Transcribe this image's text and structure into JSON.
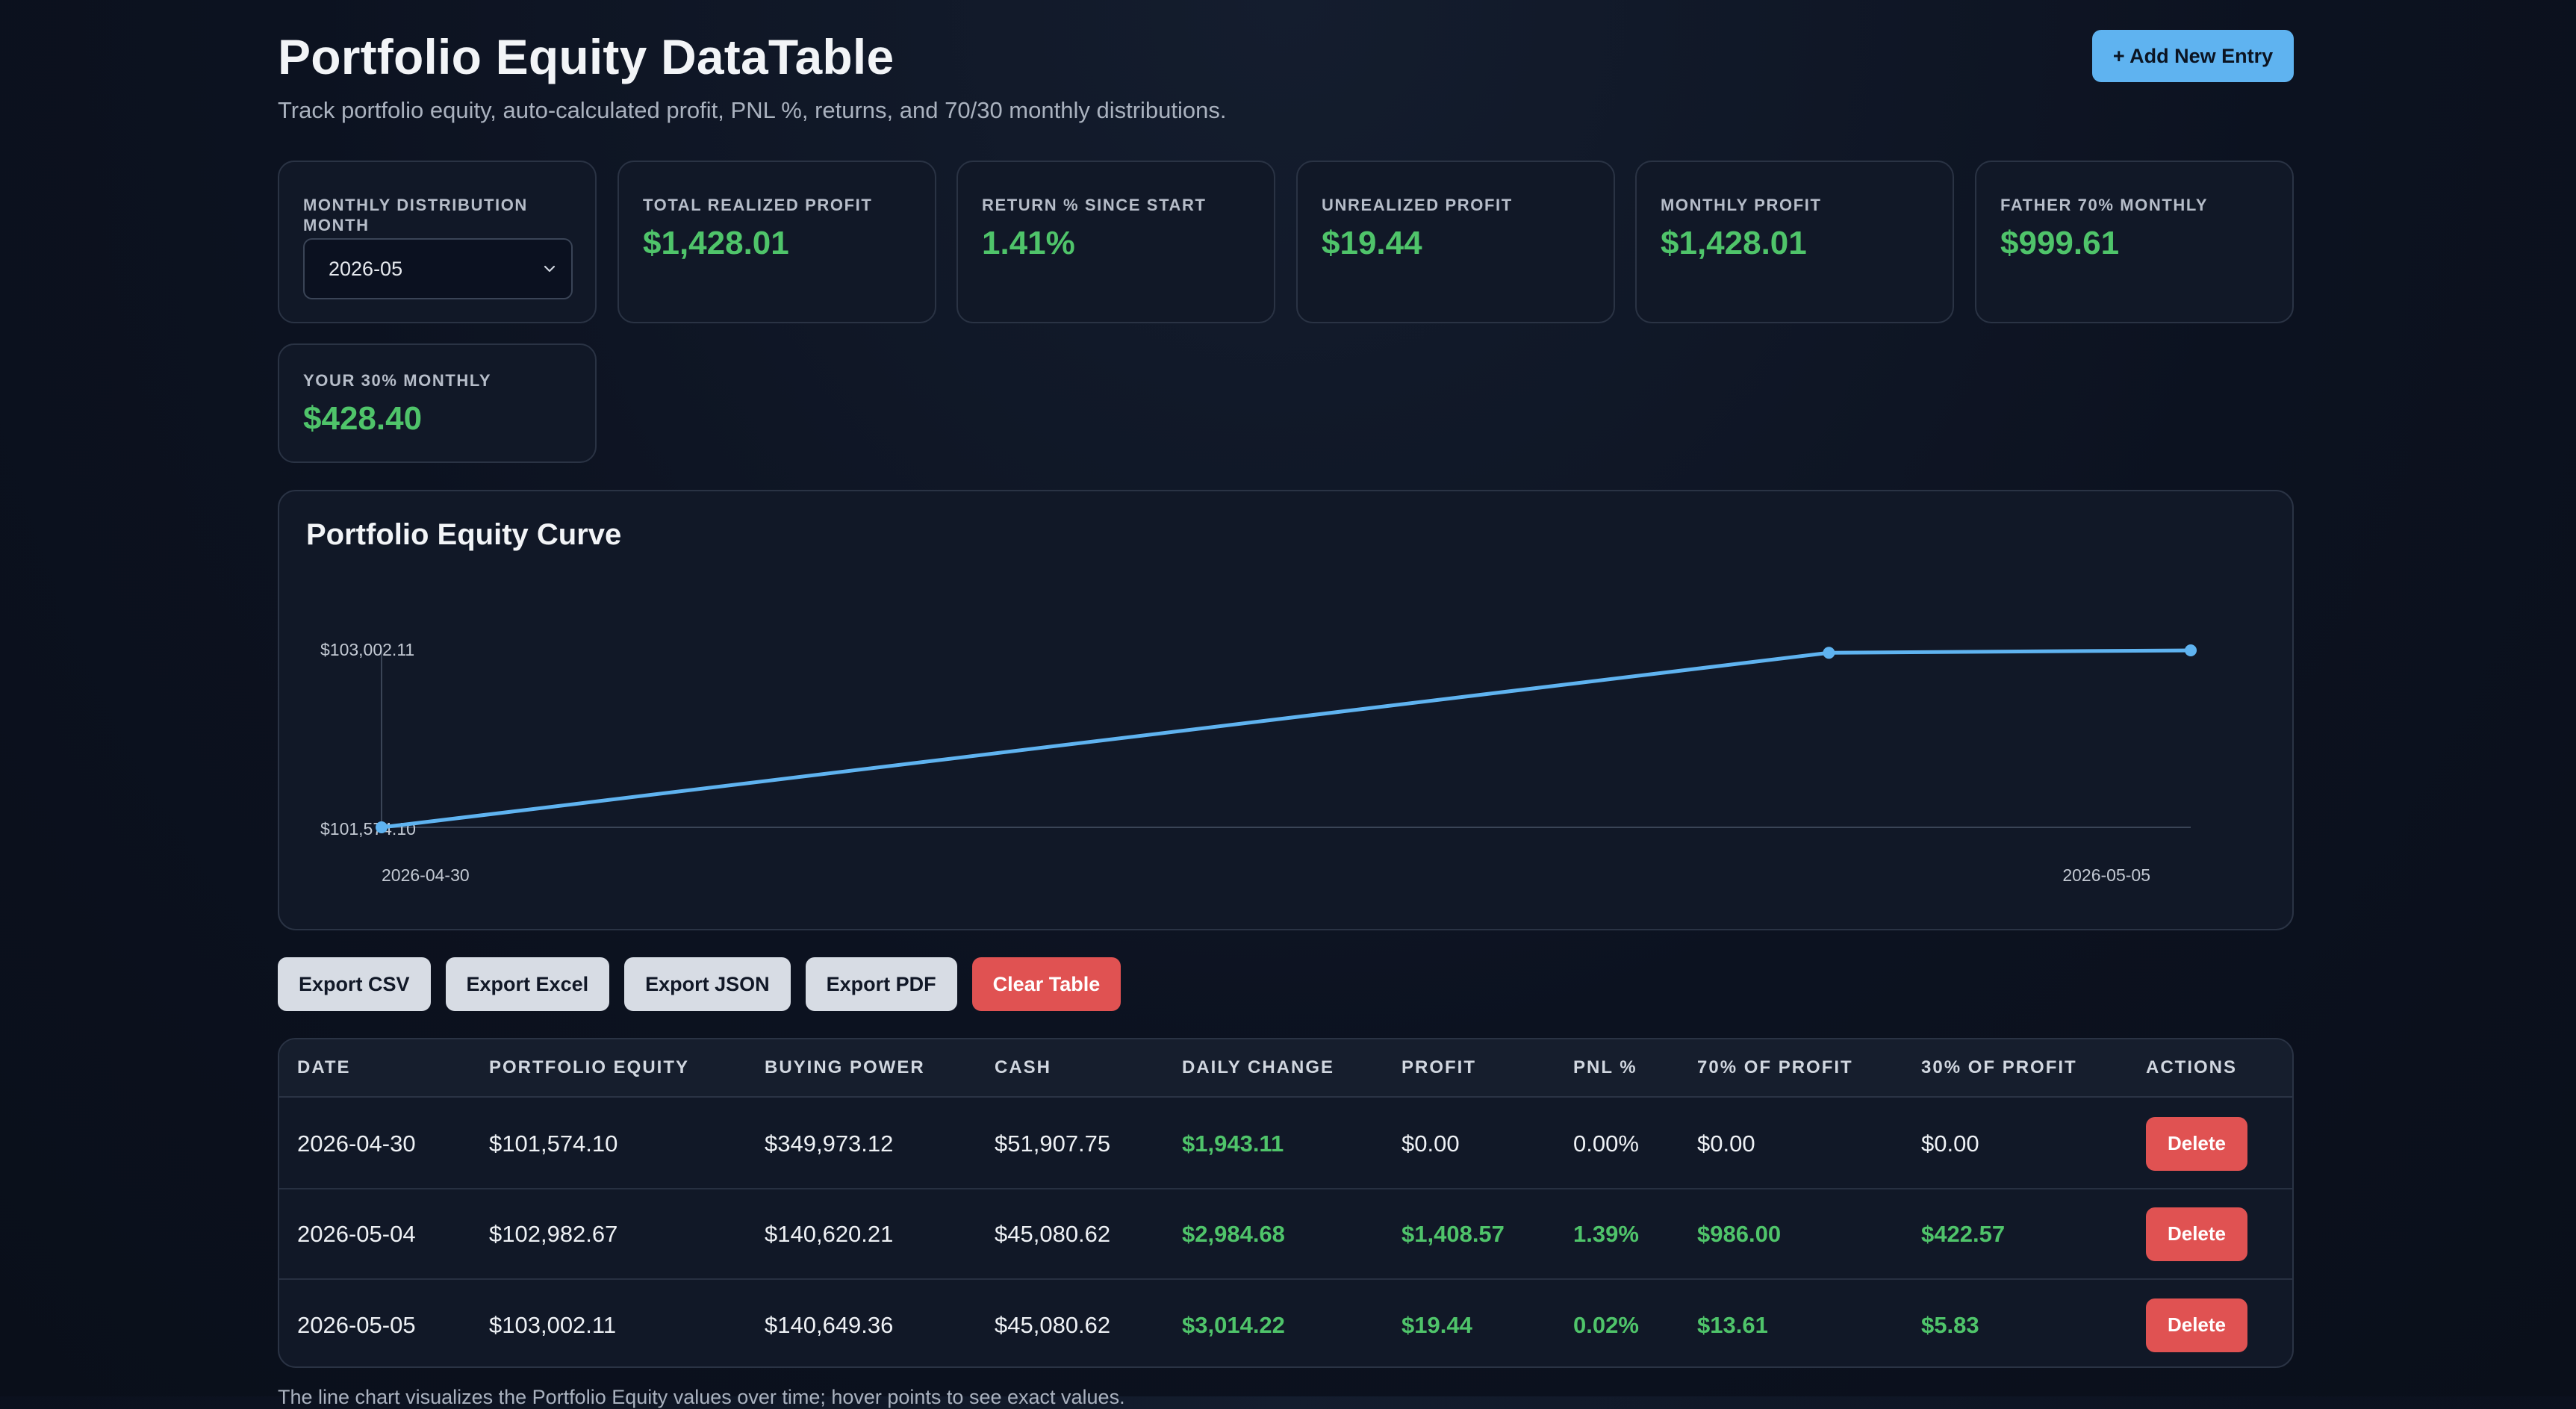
{
  "header": {
    "title": "Portfolio Equity DataTable",
    "subtitle": "Track portfolio equity, auto-calculated profit, PNL %, returns, and 70/30 monthly distributions.",
    "add_label": "+ Add New Entry"
  },
  "month_card": {
    "label": "MONTHLY DISTRIBUTION MONTH",
    "selected": "2026-05"
  },
  "stats": [
    {
      "label": "TOTAL REALIZED PROFIT",
      "value": "$1,428.01"
    },
    {
      "label": "RETURN % SINCE START",
      "value": "1.41%"
    },
    {
      "label": "UNREALIZED PROFIT",
      "value": "$19.44"
    },
    {
      "label": "MONTHLY PROFIT",
      "value": "$1,428.01"
    },
    {
      "label": "FATHER 70% MONTHLY",
      "value": "$999.61"
    },
    {
      "label": "YOUR 30% MONTHLY",
      "value": "$428.40"
    }
  ],
  "chart": {
    "title": "Portfolio Equity Curve"
  },
  "chart_data": {
    "type": "line",
    "title": "Portfolio Equity Curve",
    "x": [
      "2026-04-30",
      "2026-05-04",
      "2026-05-05"
    ],
    "y": [
      101574.1,
      102982.67,
      103002.11
    ],
    "x_tick_labels": [
      "2026-04-30",
      "2026-05-05"
    ],
    "y_tick_labels": [
      "$103,002.11",
      "$101,574.10"
    ],
    "ylim": [
      101574.1,
      103002.11
    ],
    "xlabel": "",
    "ylabel": "",
    "grid": false,
    "line_color": "#5fb3f0"
  },
  "buttons": {
    "export_csv": "Export CSV",
    "export_excel": "Export Excel",
    "export_json": "Export JSON",
    "export_pdf": "Export PDF",
    "clear_table": "Clear Table"
  },
  "table": {
    "headers": [
      "DATE",
      "PORTFOLIO EQUITY",
      "BUYING POWER",
      "CASH",
      "DAILY CHANGE",
      "PROFIT",
      "PNL %",
      "70% OF PROFIT",
      "30% OF PROFIT",
      "ACTIONS"
    ],
    "delete_label": "Delete",
    "rows": [
      {
        "date": "2026-04-30",
        "equity": "$101,574.10",
        "buying_power": "$349,973.12",
        "cash": "$51,907.75",
        "daily_change": "$1,943.11",
        "profit": "$0.00",
        "pnl": "0.00%",
        "p70": "$0.00",
        "p30": "$0.00"
      },
      {
        "date": "2026-05-04",
        "equity": "$102,982.67",
        "buying_power": "$140,620.21",
        "cash": "$45,080.62",
        "daily_change": "$2,984.68",
        "profit": "$1,408.57",
        "pnl": "1.39%",
        "p70": "$986.00",
        "p30": "$422.57"
      },
      {
        "date": "2026-05-05",
        "equity": "$103,002.11",
        "buying_power": "$140,649.36",
        "cash": "$45,080.62",
        "daily_change": "$3,014.22",
        "profit": "$19.44",
        "pnl": "0.02%",
        "p70": "$13.61",
        "p30": "$5.83"
      }
    ]
  },
  "colors": {
    "accent": "#5fb3f0",
    "positive": "#4fc46a",
    "danger": "#e05252",
    "card_bg": "#111827",
    "page_bg": "#0c1220"
  },
  "footnote": "The line chart visualizes the Portfolio Equity values over time; hover points to see exact values."
}
